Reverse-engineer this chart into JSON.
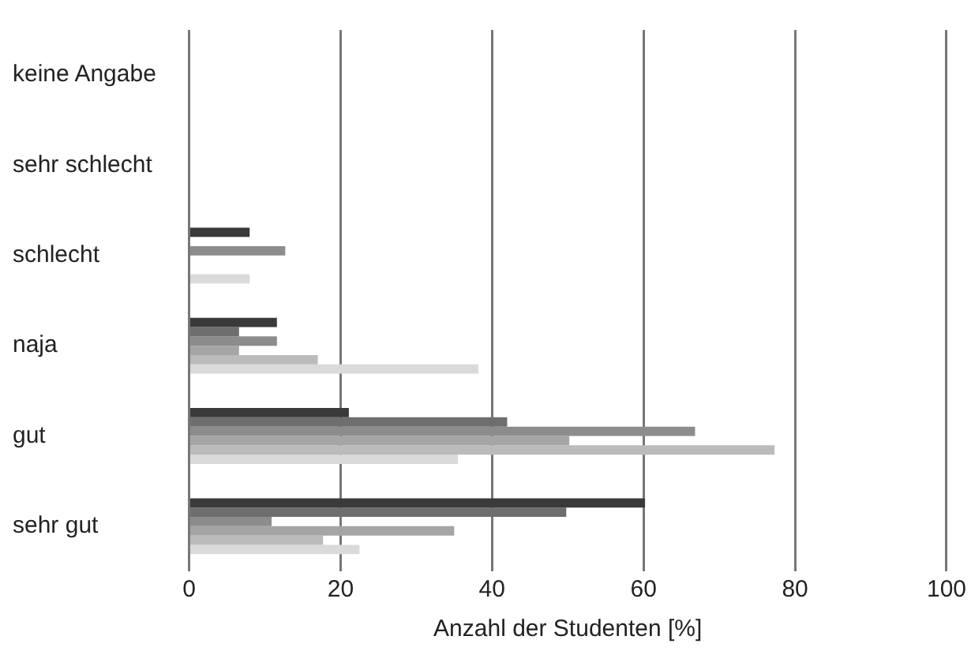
{
  "chart_data": {
    "type": "bar",
    "orientation": "horizontal",
    "xlabel": "Anzahl der Studenten [%]",
    "categories": [
      "keine Angabe",
      "sehr schlecht",
      "schlecht",
      "naja",
      "gut",
      "sehr gut"
    ],
    "series": [
      {
        "color": "#3a3a3a",
        "values": [
          0,
          0,
          8,
          11.6,
          21.1,
          60.2
        ]
      },
      {
        "color": "#6e6e6e",
        "values": [
          0,
          0,
          0,
          6.6,
          42,
          49.8
        ]
      },
      {
        "color": "#8c8c8c",
        "values": [
          0,
          0,
          12.7,
          11.6,
          66.8,
          10.9
        ]
      },
      {
        "color": "#a5a5a5",
        "values": [
          0,
          0,
          0,
          6.6,
          50.2,
          35
        ]
      },
      {
        "color": "#bbbbbb",
        "values": [
          0,
          0,
          0,
          17,
          77.3,
          17.7
        ]
      },
      {
        "color": "#dadada",
        "values": [
          0,
          0,
          8,
          38.2,
          35.5,
          22.5
        ]
      }
    ],
    "xlim": [
      0,
      100
    ],
    "xticks": [
      0,
      20,
      40,
      60,
      80,
      100
    ],
    "grid": "x",
    "legend": false
  }
}
